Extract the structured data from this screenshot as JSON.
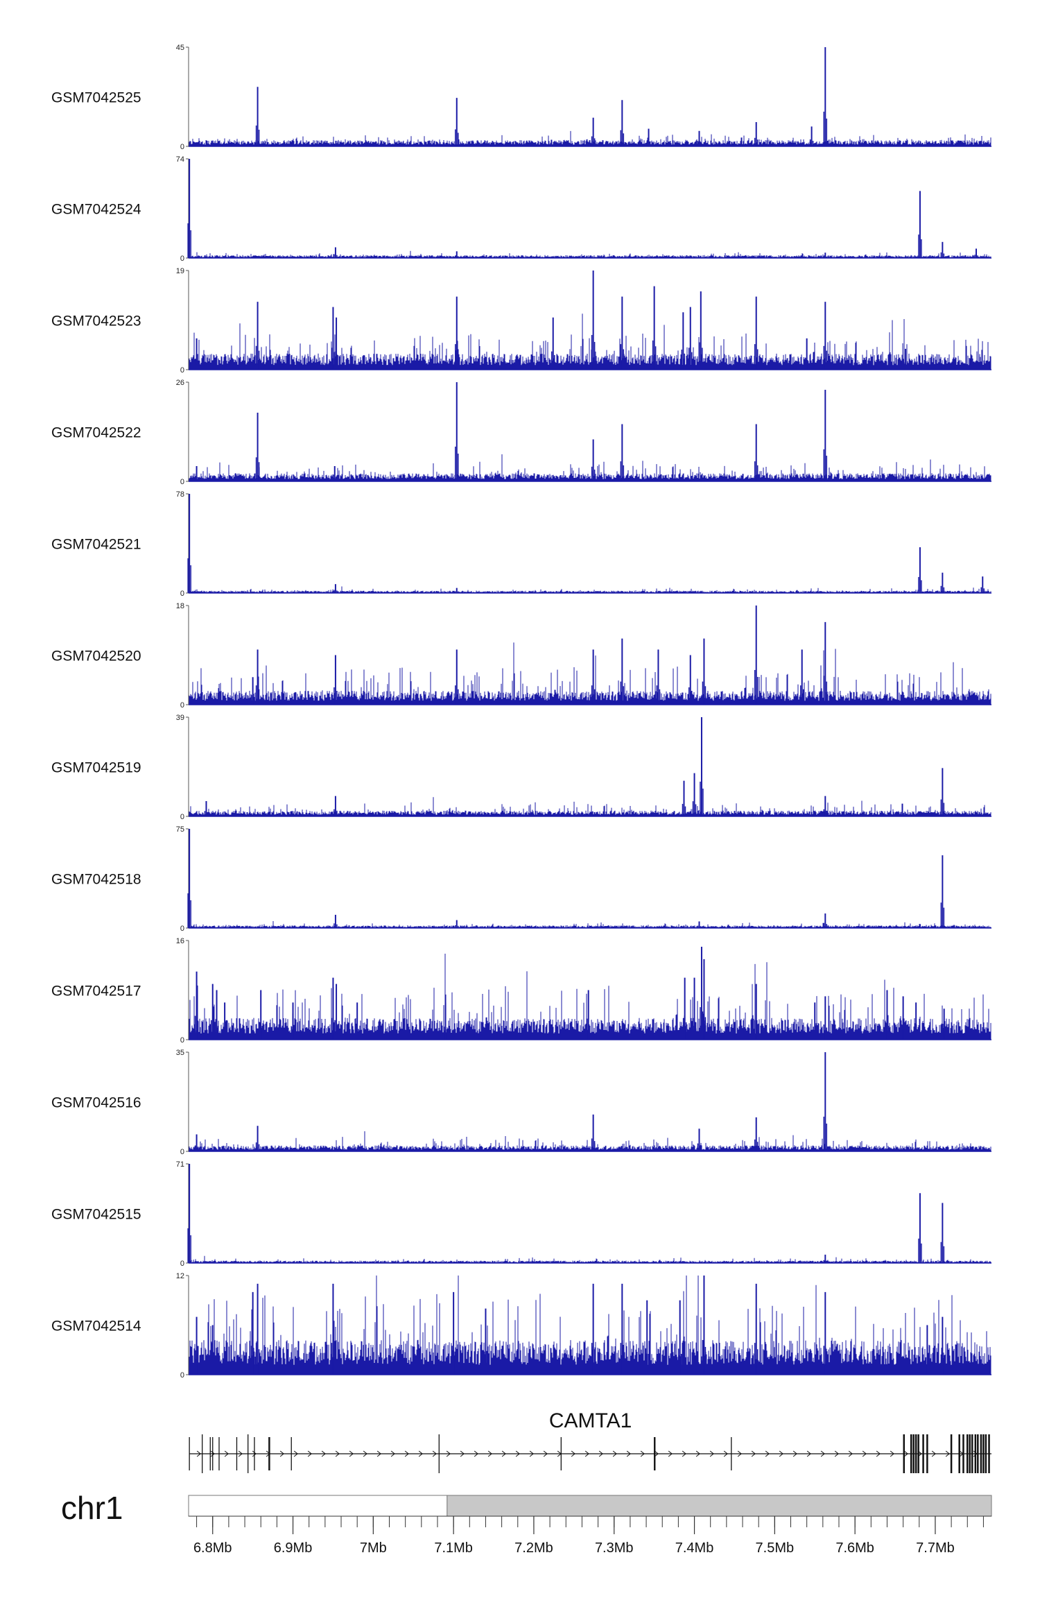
{
  "chart_data": {
    "type": "coverage_tracks",
    "colors": {
      "signal": "#1a1aa6",
      "axis": "#555555",
      "ideogram_fill": "#c8c8c8",
      "ideogram_stroke": "#777777"
    },
    "genomic_range": [
      6770000,
      7770000
    ],
    "tracks": [
      {
        "name": "GSM7042525",
        "ymax": 45,
        "ymin": 0,
        "baseline": 2,
        "noise": 2.5,
        "peaks": [
          [
            6856000,
            27
          ],
          [
            7104000,
            22
          ],
          [
            7274000,
            13
          ],
          [
            7310000,
            21
          ],
          [
            7343000,
            8
          ],
          [
            7406000,
            7
          ],
          [
            7477000,
            11
          ],
          [
            7546000,
            9
          ],
          [
            7563000,
            45
          ],
          [
            7222000,
            3
          ]
        ]
      },
      {
        "name": "GSM7042524",
        "ymax": 74,
        "ymin": 0,
        "baseline": 1.5,
        "noise": 2,
        "peaks": [
          [
            6771000,
            74
          ],
          [
            6953000,
            8
          ],
          [
            7104000,
            5
          ],
          [
            7563000,
            4
          ],
          [
            7681000,
            50
          ],
          [
            7709000,
            12
          ],
          [
            7751000,
            7
          ]
        ]
      },
      {
        "name": "GSM7042523",
        "ymax": 19,
        "ymin": 0,
        "baseline": 2.2,
        "noise": 4.5,
        "peaks": [
          [
            6780000,
            6
          ],
          [
            6781000,
            3
          ],
          [
            6856000,
            13
          ],
          [
            6950000,
            12
          ],
          [
            6954000,
            10
          ],
          [
            7104000,
            14
          ],
          [
            7224000,
            10
          ],
          [
            7274000,
            19
          ],
          [
            7310000,
            14
          ],
          [
            7350000,
            16
          ],
          [
            7386000,
            11
          ],
          [
            7395000,
            12
          ],
          [
            7408000,
            15
          ],
          [
            7477000,
            14
          ],
          [
            7540000,
            6
          ],
          [
            7563000,
            13
          ],
          [
            7663000,
            4
          ]
        ]
      },
      {
        "name": "GSM7042522",
        "ymax": 26,
        "ymin": 0,
        "baseline": 1.5,
        "noise": 2.8,
        "peaks": [
          [
            6856000,
            18
          ],
          [
            7104000,
            26
          ],
          [
            7274000,
            11
          ],
          [
            7310000,
            15
          ],
          [
            7477000,
            15
          ],
          [
            7563000,
            24
          ],
          [
            6952000,
            4
          ],
          [
            6780000,
            4
          ]
        ]
      },
      {
        "name": "GSM7042521",
        "ymax": 78,
        "ymin": 0,
        "baseline": 1.3,
        "noise": 2,
        "peaks": [
          [
            6771000,
            78
          ],
          [
            6953000,
            7
          ],
          [
            7104000,
            4
          ],
          [
            7681000,
            36
          ],
          [
            7709000,
            16
          ],
          [
            7759000,
            13
          ]
        ]
      },
      {
        "name": "GSM7042520",
        "ymax": 18,
        "ymin": 0,
        "baseline": 1.8,
        "noise": 5,
        "peaks": [
          [
            6856000,
            10
          ],
          [
            6953000,
            9
          ],
          [
            7104000,
            10
          ],
          [
            7274000,
            10
          ],
          [
            7310000,
            12
          ],
          [
            7355000,
            10
          ],
          [
            7395000,
            9
          ],
          [
            7412000,
            12
          ],
          [
            7477000,
            18
          ],
          [
            7534000,
            10
          ],
          [
            7563000,
            15
          ],
          [
            6850000,
            5
          ]
        ]
      },
      {
        "name": "GSM7042519",
        "ymax": 39,
        "ymin": 0,
        "baseline": 1.6,
        "noise": 3,
        "peaks": [
          [
            6792000,
            6
          ],
          [
            6953000,
            8
          ],
          [
            7387000,
            14
          ],
          [
            7400000,
            17
          ],
          [
            7409000,
            39
          ],
          [
            7563000,
            8
          ],
          [
            7659000,
            5
          ],
          [
            7709000,
            19
          ]
        ]
      },
      {
        "name": "GSM7042518",
        "ymax": 75,
        "ymin": 0,
        "baseline": 1.4,
        "noise": 2,
        "peaks": [
          [
            6771000,
            75
          ],
          [
            6953000,
            10
          ],
          [
            7104000,
            6
          ],
          [
            7406000,
            5
          ],
          [
            7563000,
            11
          ],
          [
            7709000,
            55
          ],
          [
            7681000,
            3
          ]
        ]
      },
      {
        "name": "GSM7042517",
        "ymax": 16,
        "ymin": 0,
        "baseline": 2.5,
        "noise": 6,
        "peaks": [
          [
            6780000,
            11
          ],
          [
            6800000,
            9
          ],
          [
            6805000,
            8
          ],
          [
            6815000,
            6
          ],
          [
            6860000,
            8
          ],
          [
            6900000,
            6
          ],
          [
            6950000,
            10
          ],
          [
            6954000,
            9
          ],
          [
            6980000,
            6
          ],
          [
            7090000,
            6
          ],
          [
            7268000,
            8
          ],
          [
            7388000,
            10
          ],
          [
            7400000,
            10
          ],
          [
            7409000,
            15
          ],
          [
            7412000,
            13
          ],
          [
            7477000,
            9
          ],
          [
            7550000,
            6
          ],
          [
            7563000,
            7
          ],
          [
            7640000,
            8
          ],
          [
            7660000,
            7
          ],
          [
            7676000,
            6
          ],
          [
            7711000,
            5
          ]
        ]
      },
      {
        "name": "GSM7042516",
        "ymax": 35,
        "ymin": 0,
        "baseline": 1.5,
        "noise": 2.8,
        "peaks": [
          [
            6856000,
            9
          ],
          [
            7274000,
            13
          ],
          [
            7406000,
            8
          ],
          [
            7477000,
            12
          ],
          [
            7563000,
            35
          ],
          [
            6780000,
            6
          ]
        ]
      },
      {
        "name": "GSM7042515",
        "ymax": 71,
        "ymin": 0,
        "baseline": 1.2,
        "noise": 2,
        "peaks": [
          [
            6771000,
            71
          ],
          [
            7563000,
            6
          ],
          [
            7681000,
            50
          ],
          [
            7709000,
            43
          ]
        ]
      },
      {
        "name": "GSM7042514",
        "ymax": 12,
        "ymin": 0,
        "baseline": 3,
        "noise": 6.5,
        "peaks": [
          [
            6780000,
            7
          ],
          [
            6800000,
            6
          ],
          [
            6850000,
            10
          ],
          [
            6856000,
            11
          ],
          [
            6950000,
            11
          ],
          [
            7100000,
            10
          ],
          [
            7140000,
            8
          ],
          [
            7274000,
            11
          ],
          [
            7310000,
            11
          ],
          [
            7341000,
            9
          ],
          [
            7382000,
            9
          ],
          [
            7412000,
            12
          ],
          [
            7477000,
            11
          ],
          [
            7563000,
            10
          ],
          [
            7690000,
            6
          ],
          [
            7709000,
            7
          ]
        ]
      }
    ],
    "gene": {
      "name": "CAMTA1",
      "start": 6771000,
      "end": 7770000,
      "exons": [
        6771000,
        6787000,
        6797000,
        6800000,
        6808000,
        6830000,
        6844000,
        6852000,
        6870000,
        6871000,
        6898000,
        7082000,
        7234000,
        7350000,
        7351000,
        7446000,
        7661000,
        7670000,
        7673000,
        7676000,
        7679000,
        7685000,
        7690000,
        7720000,
        7730000,
        7735000,
        7740000,
        7743000,
        7746000,
        7750000,
        7753000,
        7757000,
        7760000,
        7763000,
        7767000
      ]
    },
    "chromosome": "chr1",
    "ideogram": {
      "band_boundary": 7092000
    },
    "x_axis": {
      "ticks": [
        6800000,
        6900000,
        7000000,
        7100000,
        7200000,
        7300000,
        7400000,
        7500000,
        7600000,
        7700000
      ],
      "tick_labels": [
        "6.8Mb",
        "6.9Mb",
        "7Mb",
        "7.1Mb",
        "7.2Mb",
        "7.3Mb",
        "7.4Mb",
        "7.5Mb",
        "7.6Mb",
        "7.7Mb"
      ],
      "minor_step": 20000
    }
  }
}
